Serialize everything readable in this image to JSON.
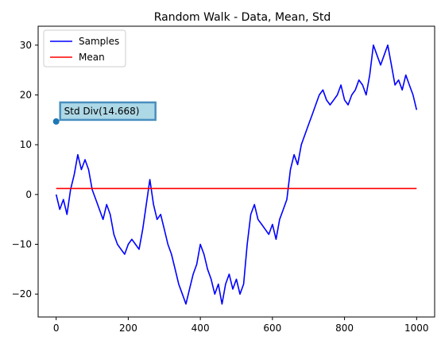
{
  "chart_data": {
    "type": "line",
    "title": "Random Walk - Data, Mean, Std",
    "xlabel": "",
    "ylabel": "",
    "xlim": [
      -50,
      1050
    ],
    "ylim": [
      -24.6,
      33.8
    ],
    "x_ticks": [
      0,
      200,
      400,
      600,
      800,
      1000
    ],
    "x_tick_labels": [
      "0",
      "200",
      "400",
      "600",
      "800",
      "1000"
    ],
    "y_ticks": [
      -20,
      -10,
      0,
      10,
      20,
      30
    ],
    "y_tick_labels": [
      "−20",
      "−10",
      "0",
      "10",
      "20",
      "30"
    ],
    "legend": {
      "position": "top-left",
      "entries": [
        {
          "label": "Samples",
          "color": "#0000ff"
        },
        {
          "label": "Mean",
          "color": "#ff0000"
        }
      ]
    },
    "series": [
      {
        "name": "Samples",
        "color": "#0000ff",
        "x": [
          0,
          10,
          20,
          30,
          40,
          50,
          60,
          70,
          80,
          90,
          100,
          110,
          120,
          130,
          140,
          150,
          160,
          170,
          180,
          190,
          200,
          210,
          220,
          230,
          240,
          250,
          260,
          270,
          280,
          290,
          300,
          310,
          320,
          330,
          340,
          350,
          360,
          370,
          380,
          390,
          400,
          410,
          420,
          430,
          440,
          450,
          460,
          470,
          480,
          490,
          500,
          510,
          520,
          530,
          540,
          550,
          560,
          570,
          580,
          590,
          600,
          610,
          620,
          630,
          640,
          650,
          660,
          670,
          680,
          690,
          700,
          710,
          720,
          730,
          740,
          750,
          760,
          770,
          780,
          790,
          800,
          810,
          820,
          830,
          840,
          850,
          860,
          870,
          880,
          890,
          900,
          910,
          920,
          930,
          940,
          950,
          960,
          970,
          980,
          990,
          1000
        ],
        "values": [
          0,
          -3,
          -1,
          -4,
          1,
          4,
          8,
          5,
          7,
          5,
          1,
          -1,
          -3,
          -5,
          -2,
          -4,
          -8,
          -10,
          -11,
          -12,
          -10,
          -9,
          -10,
          -11,
          -7,
          -2,
          3,
          -2,
          -5,
          -4,
          -7,
          -10,
          -12,
          -15,
          -18,
          -20,
          -22,
          -19,
          -16,
          -14,
          -10,
          -12,
          -15,
          -17,
          -20,
          -18,
          -22,
          -18,
          -16,
          -19,
          -17,
          -20,
          -18,
          -10,
          -4,
          -2,
          -5,
          -6,
          -7,
          -8,
          -6,
          -9,
          -5,
          -3,
          -1,
          5,
          8,
          6,
          10,
          12,
          14,
          16,
          18,
          20,
          21,
          19,
          18,
          19,
          20,
          22,
          19,
          18,
          20,
          21,
          23,
          22,
          20,
          24,
          30,
          28,
          26,
          28,
          30,
          26,
          22,
          23,
          21,
          24,
          22,
          20,
          17
        ]
      },
      {
        "name": "Mean",
        "color": "#ff0000",
        "x": [
          0,
          1000
        ],
        "values": [
          1.2,
          1.2
        ]
      }
    ],
    "annotation": {
      "text": "Std Div(14.668)",
      "point": {
        "x": 0,
        "y": 14.668
      },
      "point_color": "#1f77b4",
      "box_fill": "#add8e6",
      "box_edge": "#4a8fbf"
    }
  }
}
